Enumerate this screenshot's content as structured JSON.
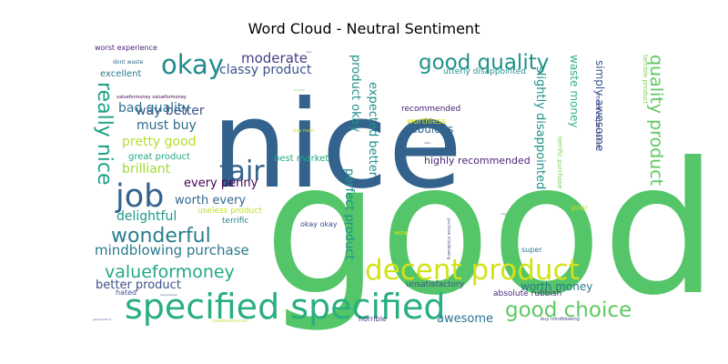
{
  "chart_data": {
    "type": "wordcloud",
    "title": "Word Cloud - Neutral Sentiment",
    "words": [
      {
        "text": "good",
        "color": "#54c568"
      },
      {
        "text": "nice",
        "color": "#33638d"
      },
      {
        "text": "specified specified",
        "color": "#29af7f"
      },
      {
        "text": "decent product",
        "color": "#d2e21b"
      },
      {
        "text": "good quality",
        "color": "#21918c"
      },
      {
        "text": "good choice",
        "color": "#5ec962"
      },
      {
        "text": "fair",
        "color": "#33638d"
      },
      {
        "text": "okay",
        "color": "#238a8d"
      },
      {
        "text": "job",
        "color": "#33638d"
      },
      {
        "text": "wonderful",
        "color": "#287d8e"
      },
      {
        "text": "valueformoney",
        "color": "#22a884"
      },
      {
        "text": "quality product",
        "color": "#5ec962"
      },
      {
        "text": "really nice",
        "color": "#1fa188"
      },
      {
        "text": "mindblowing purchase",
        "color": "#2a788e"
      },
      {
        "text": "moderate",
        "color": "#433e85"
      },
      {
        "text": "classy product",
        "color": "#3b528b"
      },
      {
        "text": "way better",
        "color": "#3b528b"
      },
      {
        "text": "bad quality",
        "color": "#2c728e"
      },
      {
        "text": "must buy",
        "color": "#2f6c8e"
      },
      {
        "text": "pretty good",
        "color": "#b5de2b"
      },
      {
        "text": "brilliant",
        "color": "#a0da39"
      },
      {
        "text": "every penny",
        "color": "#440154"
      },
      {
        "text": "worth every",
        "color": "#31688e"
      },
      {
        "text": "delightful",
        "color": "#1f9a8a"
      },
      {
        "text": "product okay",
        "color": "#21918c"
      },
      {
        "text": "expected better",
        "color": "#21918c"
      },
      {
        "text": "perfect product",
        "color": "#21918c"
      },
      {
        "text": "slightly disappointed",
        "color": "#21918c"
      },
      {
        "text": "waste money",
        "color": "#2fb47c"
      },
      {
        "text": "simply awesome",
        "color": "#3b528b"
      },
      {
        "text": "worth money",
        "color": "#2a788e"
      },
      {
        "text": "better product",
        "color": "#3b528b"
      },
      {
        "text": "awesome",
        "color": "#2c728e"
      },
      {
        "text": "fabulous",
        "color": "#31688e"
      },
      {
        "text": "highly recommended",
        "color": "#482576"
      },
      {
        "text": "best market",
        "color": "#22a884"
      },
      {
        "text": "great product",
        "color": "#22a884"
      },
      {
        "text": "excellent",
        "color": "#2a788e"
      },
      {
        "text": "utterly disappointed",
        "color": "#21918c"
      },
      {
        "text": "recommended",
        "color": "#482173"
      },
      {
        "text": "worthless",
        "color": "#d2e21b"
      },
      {
        "text": "unsatisfactory",
        "color": "#3b528b"
      },
      {
        "text": "absolute rubbish",
        "color": "#472d7b"
      },
      {
        "text": "terrific",
        "color": "#287d8e"
      },
      {
        "text": "useless product",
        "color": "#c2df23"
      },
      {
        "text": "okay okay",
        "color": "#3e4989"
      },
      {
        "text": "hated",
        "color": "#3b528b"
      },
      {
        "text": "horrible",
        "color": "#414487"
      },
      {
        "text": "poor",
        "color": "#c8e020"
      },
      {
        "text": "super",
        "color": "#2a788e"
      },
      {
        "text": "wow",
        "color": "#d8e219"
      },
      {
        "text": "meet expectation",
        "color": "#3e4989"
      },
      {
        "text": "terrific purchase",
        "color": "#7ad151"
      },
      {
        "text": "terrible product",
        "color": "#7ad151"
      },
      {
        "text": "worst experience",
        "color": "#482576"
      },
      {
        "text": "dont waste",
        "color": "#31688e"
      },
      {
        "text": "valueformoney valueformoney",
        "color": "#440154"
      },
      {
        "text": "buy most",
        "color": "#d2e21b"
      },
      {
        "text": "buy mindblowing",
        "color": "#414487"
      },
      {
        "text": "purchase mindblowing",
        "color": "#414487"
      },
      {
        "text": "valueformoney nice",
        "color": "#b5de2b"
      },
      {
        "text": "good product",
        "color": "#3b528b"
      },
      {
        "text": "product",
        "color": "#6ece58"
      },
      {
        "text": "nice",
        "color": "#3b528b"
      },
      {
        "text": "okay",
        "color": "#3b528b"
      },
      {
        "text": "nice product",
        "color": "#3b528b"
      },
      {
        "text": "buy",
        "color": "#3b528b"
      }
    ]
  }
}
